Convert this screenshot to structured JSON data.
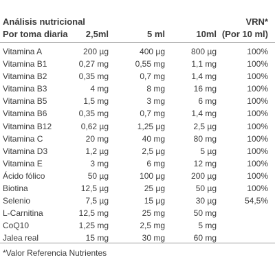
{
  "table": {
    "title": "Análisis nutricional",
    "subtitle": "Por toma diaria",
    "vrn_heading": "VRN*",
    "columns": [
      "2,5ml",
      "5 ml",
      "10ml",
      "(Por 10 ml)"
    ],
    "rows": [
      {
        "name": "Vitamina A",
        "v1": "200 µg",
        "v2": "400 µg",
        "v3": "800 µg",
        "vrn": "100%"
      },
      {
        "name": "Vitamina B1",
        "v1": "0,27 mg",
        "v2": "0,55 mg",
        "v3": "1,1 mg",
        "vrn": "100%"
      },
      {
        "name": "Vitamina B2",
        "v1": "0,35 mg",
        "v2": "0,7 mg",
        "v3": "1,4 mg",
        "vrn": "100%"
      },
      {
        "name": "Vitamina B3",
        "v1": "4 mg",
        "v2": "8 mg",
        "v3": "16 mg",
        "vrn": "100%"
      },
      {
        "name": "Vitamina B5",
        "v1": "1,5 mg",
        "v2": "3 mg",
        "v3": "6 mg",
        "vrn": "100%"
      },
      {
        "name": "Vitamina B6",
        "v1": "0,35 mg",
        "v2": "0,7 mg",
        "v3": "1,4 mg",
        "vrn": "100%"
      },
      {
        "name": "Vitamina B12",
        "v1": "0,62 µg",
        "v2": "1,25 µg",
        "v3": "2,5 µg",
        "vrn": "100%"
      },
      {
        "name": "Vitamina C",
        "v1": "20 mg",
        "v2": "40 mg",
        "v3": "80 mg",
        "vrn": "100%"
      },
      {
        "name": "Vitamina D3",
        "v1": "1,2 µg",
        "v2": "2,5 µg",
        "v3": "5 µg",
        "vrn": "100%"
      },
      {
        "name": "Vitamina E",
        "v1": "3 mg",
        "v2": "6 mg",
        "v3": "12 mg",
        "vrn": "100%"
      },
      {
        "name": "Ácido fólico",
        "v1": "50 µg",
        "v2": "100 µg",
        "v3": "200 µg",
        "vrn": "100%"
      },
      {
        "name": "Biotina",
        "v1": "12,5 µg",
        "v2": "25 µg",
        "v3": "50 µg",
        "vrn": "100%"
      },
      {
        "name": "Selenio",
        "v1": "7,5 µg",
        "v2": "15 µg",
        "v3": "30 µg",
        "vrn": "54,5%"
      },
      {
        "name": "L-Carnitina",
        "v1": "12,5 mg",
        "v2": "25 mg",
        "v3": "50 mg",
        "vrn": ""
      },
      {
        "name": "CoQ10",
        "v1": "1,25 mg",
        "v2": "2,5 mg",
        "v3": "5 mg",
        "vrn": ""
      },
      {
        "name": "Jalea real",
        "v1": "15 mg",
        "v2": "30 mg",
        "v3": "60 mg",
        "vrn": ""
      }
    ],
    "footnote": "*Valor Referencia Nutrientes"
  },
  "colors": {
    "text": "#3a3a3a",
    "rule": "#9a9a9a",
    "background": "#ffffff"
  }
}
